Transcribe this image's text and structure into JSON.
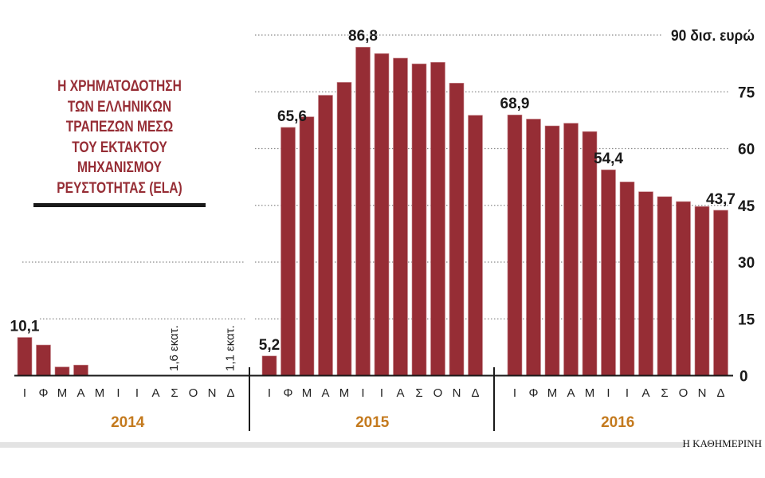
{
  "chart_data": {
    "type": "bar",
    "title": "Η ΧΡΗΜΑΤΟΔΟΤΗΣΗ ΤΩΝ ΕΛΛΗΝΙΚΩΝ ΤΡΑΠΕΖΩΝ ΜΕΣΩ ΤΟΥ ΕΚΤΑΚΤΟΥ ΜΗΧΑΝΙΣΜΟΥ ΡΕΥΣΤΟΤΗΤΑΣ (ELA)",
    "title_lines": [
      "Η ΧΡΗΜΑΤΟΔΟΤΗΣΗ",
      "ΤΩΝ ΕΛΛΗΝΙΚΩΝ",
      "ΤΡΑΠΕΖΩΝ ΜΕΣΩ",
      "ΤΟΥ ΕΚΤΑΚΤΟΥ",
      "ΜΗΧΑΝΙΣΜΟΥ",
      "ΡΕΥΣΤΟΤΗΤΑΣ (ELA)"
    ],
    "ylabel": "δισ. ευρώ",
    "ylim": [
      0,
      90
    ],
    "yticks": [
      0,
      15,
      30,
      45,
      60,
      75,
      90
    ],
    "ytick_labels": [
      "0",
      "15",
      "30",
      "45",
      "60",
      "75",
      "90 δισ. ευρώ"
    ],
    "grid": true,
    "months": [
      "Ι",
      "Φ",
      "Μ",
      "Α",
      "Μ",
      "Ι",
      "Ι",
      "Α",
      "Σ",
      "Ο",
      "Ν",
      "Δ"
    ],
    "years": [
      {
        "year": "2014",
        "values": [
          10.1,
          8.1,
          2.3,
          2.8,
          0,
          0,
          0,
          0,
          0.0016,
          0,
          0,
          0.0011
        ]
      },
      {
        "year": "2015",
        "values": [
          5.2,
          65.6,
          68.4,
          74.1,
          77.5,
          86.8,
          85.1,
          83.9,
          82.4,
          82.8,
          77.3,
          68.8
        ]
      },
      {
        "year": "2016",
        "values": [
          68.9,
          67.8,
          66.0,
          66.7,
          64.5,
          54.4,
          51.2,
          48.6,
          47.3,
          46.0,
          44.7,
          43.7
        ]
      }
    ],
    "data_labels": [
      {
        "year": 0,
        "month": 0,
        "text": "10,1"
      },
      {
        "year": 0,
        "month": 8,
        "text": "1,6 εκατ.",
        "rotated": true
      },
      {
        "year": 0,
        "month": 11,
        "text": "1,1 εκατ.",
        "rotated": true
      },
      {
        "year": 1,
        "month": 0,
        "text": "5,2"
      },
      {
        "year": 1,
        "month": 1,
        "text": "65,6"
      },
      {
        "year": 1,
        "month": 5,
        "text": "86,8"
      },
      {
        "year": 2,
        "month": 0,
        "text": "68,9"
      },
      {
        "year": 2,
        "month": 5,
        "text": "54,4"
      },
      {
        "year": 2,
        "month": 11,
        "text": "43,7"
      }
    ],
    "colors": {
      "bar": "#962d35",
      "year_label": "#c47a1e",
      "title": "#962d35",
      "grid": "#8a8a8a"
    }
  },
  "source": "Η ΚΑΘΗΜΕΡΙΝΗ"
}
